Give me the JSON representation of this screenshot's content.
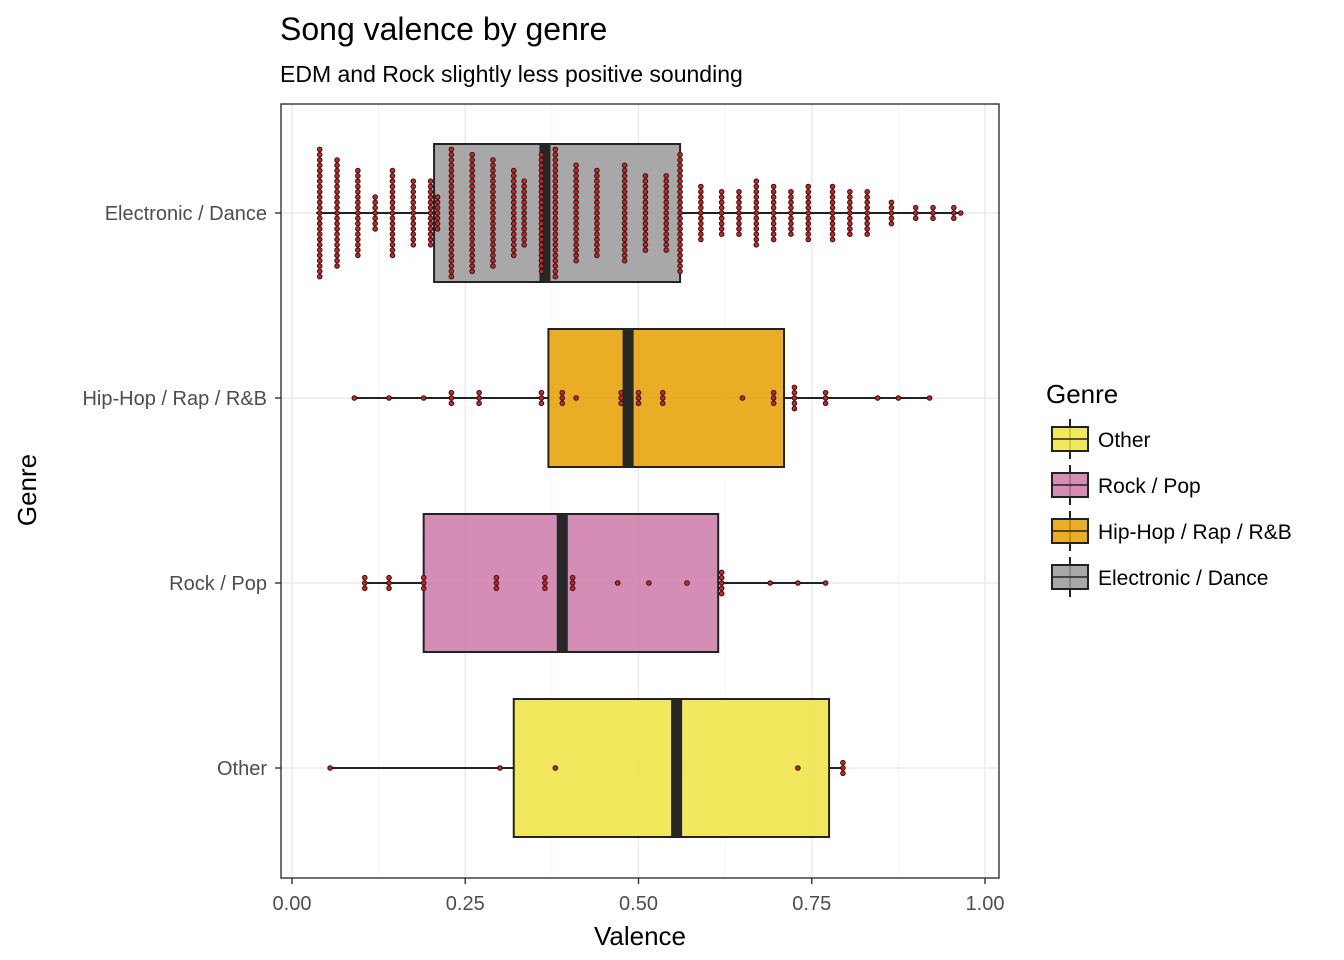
{
  "chart_data": {
    "type": "boxplot",
    "title": "Song valence by genre",
    "subtitle": "EDM and Rock slightly less positive sounding",
    "xlabel": "Valence",
    "ylabel": "Genre",
    "xlim": [
      -0.02,
      1.02
    ],
    "xticks": [
      0,
      0.25,
      0.5,
      0.75,
      1
    ],
    "xtick_labels": [
      "0.00",
      "0.25",
      "0.50",
      "0.75",
      "1.00"
    ],
    "grid": true,
    "orientation": "horizontal",
    "legend": {
      "title": "Genre",
      "position": "right"
    },
    "categories": [
      "Electronic / Dance",
      "Hip-Hop / Rap / R&B",
      "Rock / Pop",
      "Other"
    ],
    "legend_order": [
      "Other",
      "Rock / Pop",
      "Hip-Hop / Rap / R&B",
      "Electronic / Dance"
    ],
    "series": [
      {
        "name": "Electronic / Dance",
        "color": "#999999",
        "box": {
          "whisker_low": 0.035,
          "q1": 0.205,
          "median": 0.365,
          "q3": 0.56,
          "whisker_high": 0.965
        },
        "points": [
          [
            0.04,
            25
          ],
          [
            0.065,
            21
          ],
          [
            0.095,
            17
          ],
          [
            0.12,
            7
          ],
          [
            0.145,
            17
          ],
          [
            0.175,
            13
          ],
          [
            0.2,
            13
          ],
          [
            0.21,
            7
          ],
          [
            0.23,
            25
          ],
          [
            0.26,
            23
          ],
          [
            0.29,
            21
          ],
          [
            0.32,
            17
          ],
          [
            0.335,
            13
          ],
          [
            0.36,
            23
          ],
          [
            0.38,
            25
          ],
          [
            0.41,
            19
          ],
          [
            0.44,
            17
          ],
          [
            0.48,
            19
          ],
          [
            0.51,
            15
          ],
          [
            0.54,
            15
          ],
          [
            0.56,
            23
          ],
          [
            0.59,
            11
          ],
          [
            0.62,
            9
          ],
          [
            0.645,
            9
          ],
          [
            0.67,
            13
          ],
          [
            0.695,
            11
          ],
          [
            0.72,
            9
          ],
          [
            0.745,
            11
          ],
          [
            0.78,
            11
          ],
          [
            0.805,
            9
          ],
          [
            0.83,
            9
          ],
          [
            0.865,
            5
          ],
          [
            0.9,
            3
          ],
          [
            0.925,
            3
          ],
          [
            0.955,
            3
          ],
          [
            0.965,
            1
          ]
        ]
      },
      {
        "name": "Hip-Hop / Rap / R&B",
        "color": "#E69F00",
        "box": {
          "whisker_low": 0.09,
          "q1": 0.37,
          "median": 0.485,
          "q3": 0.71,
          "whisker_high": 0.92
        },
        "points": [
          [
            0.09,
            1
          ],
          [
            0.14,
            1
          ],
          [
            0.19,
            1
          ],
          [
            0.23,
            3
          ],
          [
            0.27,
            3
          ],
          [
            0.36,
            3
          ],
          [
            0.39,
            3
          ],
          [
            0.41,
            1
          ],
          [
            0.475,
            3
          ],
          [
            0.5,
            3
          ],
          [
            0.535,
            3
          ],
          [
            0.65,
            1
          ],
          [
            0.695,
            3
          ],
          [
            0.725,
            5
          ],
          [
            0.77,
            3
          ],
          [
            0.845,
            1
          ],
          [
            0.875,
            1
          ],
          [
            0.92,
            1
          ]
        ]
      },
      {
        "name": "Rock / Pop",
        "color": "#CC79A7",
        "box": {
          "whisker_low": 0.105,
          "q1": 0.19,
          "median": 0.39,
          "q3": 0.615,
          "whisker_high": 0.77
        },
        "points": [
          [
            0.105,
            3
          ],
          [
            0.14,
            3
          ],
          [
            0.19,
            3
          ],
          [
            0.295,
            3
          ],
          [
            0.365,
            3
          ],
          [
            0.405,
            3
          ],
          [
            0.47,
            1
          ],
          [
            0.515,
            1
          ],
          [
            0.57,
            1
          ],
          [
            0.62,
            5
          ],
          [
            0.69,
            1
          ],
          [
            0.73,
            1
          ],
          [
            0.77,
            1
          ]
        ]
      },
      {
        "name": "Other",
        "color": "#F0E442",
        "box": {
          "whisker_low": 0.055,
          "q1": 0.32,
          "median": 0.555,
          "q3": 0.775,
          "whisker_high": 0.795
        },
        "points": [
          [
            0.055,
            1
          ],
          [
            0.3,
            1
          ],
          [
            0.38,
            1
          ],
          [
            0.73,
            1
          ],
          [
            0.795,
            3
          ]
        ]
      }
    ]
  }
}
